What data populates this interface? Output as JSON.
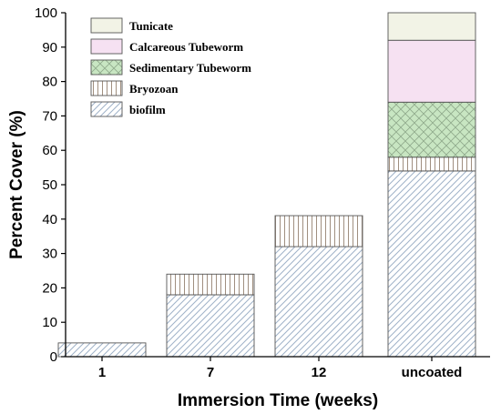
{
  "chart_data": {
    "type": "bar",
    "stacked": true,
    "xlabel": "Immersion Time (weeks)",
    "ylabel": "Percent Cover (%)",
    "ylim": [
      0,
      100
    ],
    "yticks": [
      0,
      10,
      20,
      30,
      40,
      50,
      60,
      70,
      80,
      90,
      100
    ],
    "categories": [
      "1",
      "7",
      "12",
      "uncoated"
    ],
    "series": [
      {
        "name": "biofilm",
        "values": [
          4,
          18,
          32,
          54
        ],
        "color": "#9fb2c8",
        "pattern": "diagonal-hatch"
      },
      {
        "name": "Bryozoan",
        "values": [
          0,
          6,
          9,
          4
        ],
        "color": "#a08f80",
        "pattern": "vertical-lines"
      },
      {
        "name": "Sedimentary Tubeworm",
        "values": [
          0,
          0,
          0,
          16
        ],
        "color": "#c8e6c2",
        "pattern": "crosshatch"
      },
      {
        "name": "Calcareous Tubeworm",
        "values": [
          0,
          0,
          0,
          18
        ],
        "color": "#f6e1f2",
        "pattern": "solid"
      },
      {
        "name": "Tunicate",
        "values": [
          0,
          0,
          0,
          8
        ],
        "color": "#f2f3e6",
        "pattern": "solid"
      }
    ],
    "legend_position": "top-left",
    "legend_order": [
      "Tunicate",
      "Calcareous Tubeworm",
      "Sedimentary Tubeworm",
      "Bryozoan",
      "biofilm"
    ],
    "grid": false
  }
}
